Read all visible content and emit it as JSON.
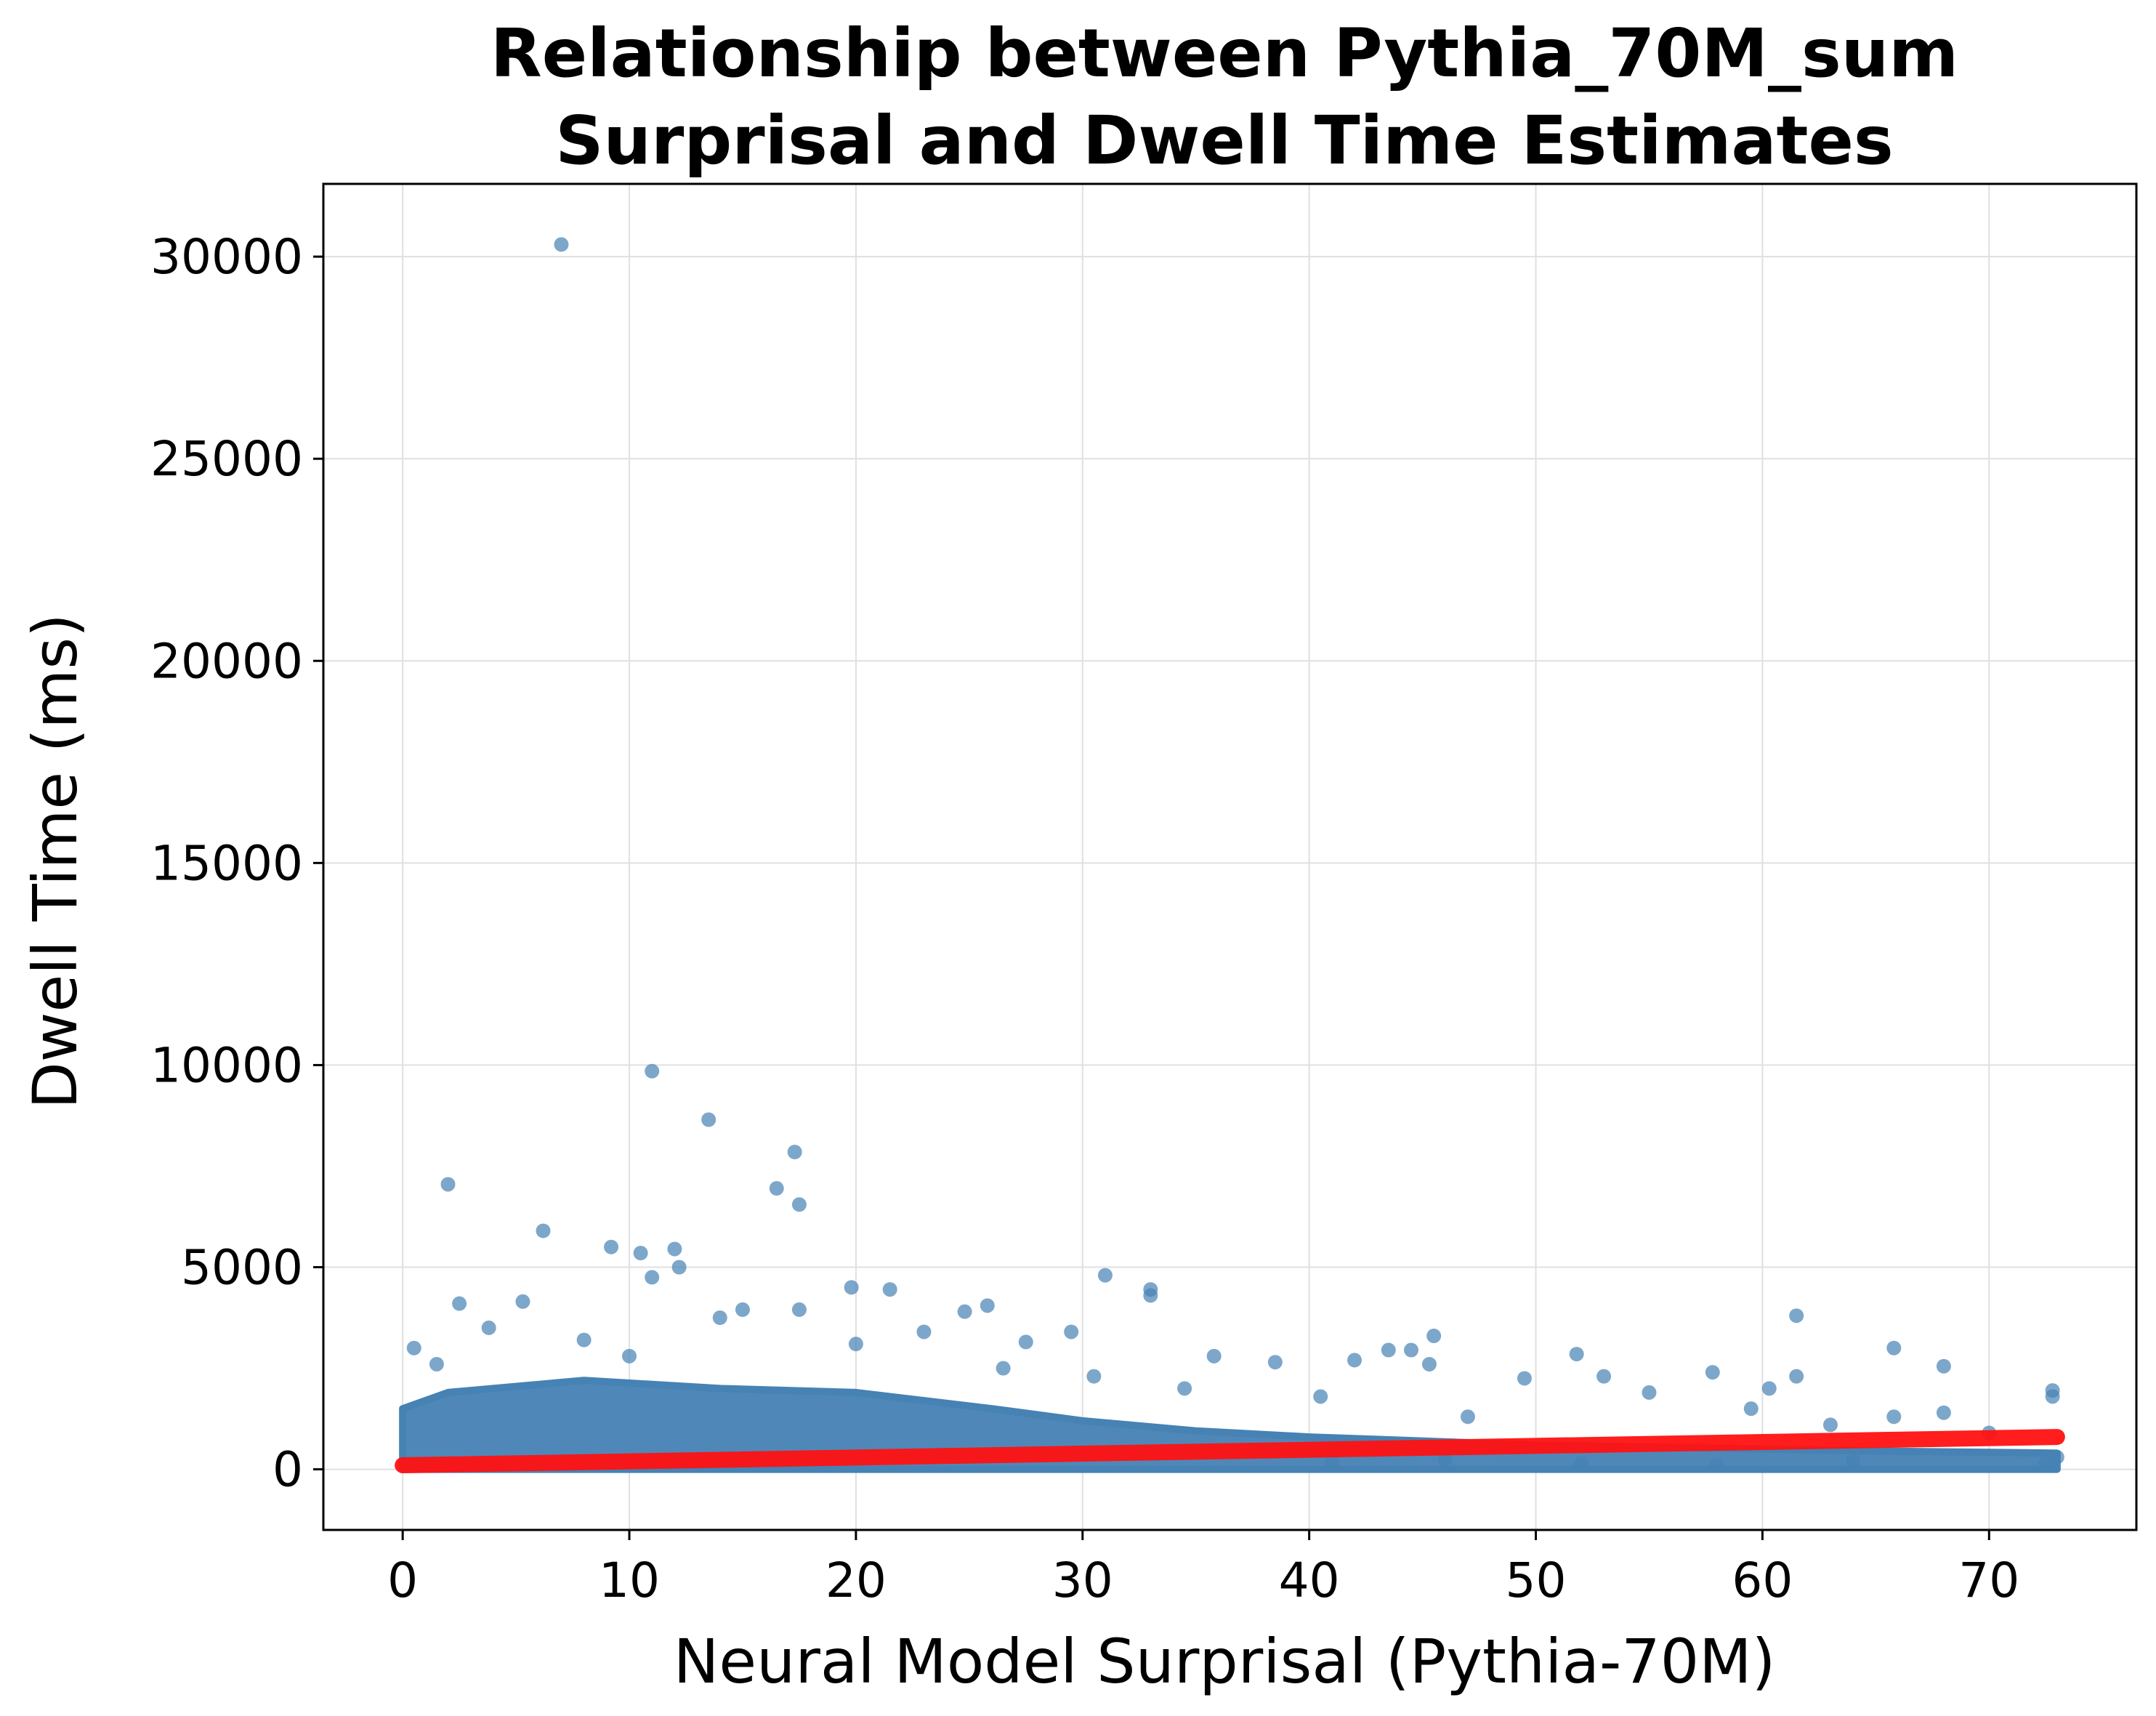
{
  "chart_data": {
    "type": "scatter",
    "title_lines": [
      "Relationship between Pythia_70M_sum",
      "Surprisal and Dwell Time Estimates"
    ],
    "xlabel": "Neural Model Surprisal (Pythia-70M)",
    "ylabel": "Dwell Time (ms)",
    "xlim": [
      -3.5,
      76.5
    ],
    "ylim": [
      -1500,
      31800
    ],
    "xticks": [
      0,
      10,
      20,
      30,
      40,
      50,
      60,
      70
    ],
    "yticks": [
      0,
      5000,
      10000,
      15000,
      20000,
      25000,
      30000
    ],
    "grid": true,
    "colors": {
      "points": "#4682b4",
      "regression": "#ff1111",
      "grid": "#e0e0e0"
    },
    "regression_line": {
      "x": [
        0,
        73
      ],
      "y": [
        100,
        800
      ]
    },
    "series": [
      {
        "values": [
          [
            7.0,
            30300
          ],
          [
            11.0,
            9850
          ],
          [
            13.5,
            8650
          ],
          [
            17.3,
            7850
          ],
          [
            16.5,
            6950
          ],
          [
            17.5,
            6550
          ],
          [
            2.0,
            7050
          ],
          [
            6.2,
            5900
          ],
          [
            9.2,
            5500
          ],
          [
            10.5,
            5350
          ],
          [
            12.0,
            5450
          ],
          [
            12.2,
            5000
          ],
          [
            11.0,
            4750
          ],
          [
            19.8,
            4500
          ],
          [
            21.5,
            4450
          ],
          [
            31.0,
            4800
          ],
          [
            33.0,
            4450
          ],
          [
            33.0,
            4300
          ],
          [
            25.8,
            4050
          ],
          [
            24.8,
            3900
          ],
          [
            5.3,
            4150
          ],
          [
            2.5,
            4100
          ],
          [
            17.5,
            3950
          ],
          [
            15.0,
            3950
          ],
          [
            14.0,
            3750
          ],
          [
            35.8,
            2800
          ],
          [
            38.5,
            2650
          ],
          [
            42.0,
            2700
          ],
          [
            43.5,
            2950
          ],
          [
            44.5,
            2950
          ],
          [
            45.5,
            3300
          ],
          [
            45.3,
            2600
          ],
          [
            49.5,
            2250
          ],
          [
            51.8,
            2850
          ],
          [
            53.0,
            2300
          ],
          [
            57.8,
            2400
          ],
          [
            60.3,
            2000
          ],
          [
            61.5,
            3800
          ],
          [
            61.5,
            2300
          ],
          [
            65.8,
            3000
          ],
          [
            68.0,
            2550
          ],
          [
            72.8,
            1950
          ],
          [
            72.8,
            1800
          ],
          [
            65.8,
            1300
          ],
          [
            68.0,
            1400
          ],
          [
            29.5,
            3400
          ],
          [
            27.5,
            3150
          ],
          [
            3.8,
            3500
          ],
          [
            0.5,
            3000
          ],
          [
            20.0,
            3100
          ],
          [
            8.0,
            3200
          ],
          [
            23.0,
            3400
          ],
          [
            1.5,
            2600
          ],
          [
            10.0,
            2800
          ],
          [
            26.5,
            2500
          ],
          [
            30.5,
            2300
          ],
          [
            34.5,
            2000
          ],
          [
            40.5,
            1800
          ],
          [
            47.0,
            1300
          ],
          [
            55.0,
            1900
          ],
          [
            59.5,
            1500
          ],
          [
            63.0,
            1100
          ],
          [
            70.0,
            900
          ],
          [
            73.0,
            300
          ],
          [
            72.5,
            150
          ],
          [
            64.0,
            200
          ],
          [
            58.0,
            100
          ],
          [
            52.0,
            150
          ],
          [
            46.0,
            250
          ],
          [
            41.0,
            180
          ]
        ]
      }
    ],
    "dense_band": {
      "description": "dense cloud of points",
      "upper_envelope": [
        [
          0,
          1500
        ],
        [
          2,
          1900
        ],
        [
          8,
          2200
        ],
        [
          14,
          2000
        ],
        [
          20,
          1900
        ],
        [
          26,
          1500
        ],
        [
          30,
          1200
        ],
        [
          35,
          950
        ],
        [
          40,
          800
        ],
        [
          45,
          700
        ],
        [
          50,
          600
        ],
        [
          55,
          550
        ],
        [
          60,
          500
        ],
        [
          65,
          450
        ],
        [
          73,
          400
        ]
      ],
      "lower_envelope": [
        [
          0,
          0
        ],
        [
          73,
          0
        ]
      ]
    }
  }
}
